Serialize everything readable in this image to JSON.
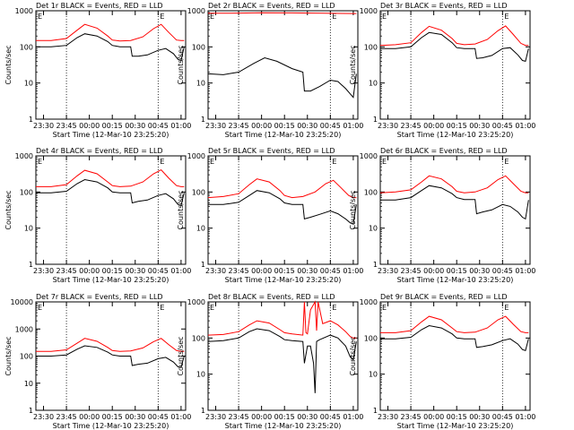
{
  "chart_data": [
    {
      "type": "line",
      "title": "Det 1r BLACK = Events, RED = LLD",
      "marker": "E",
      "ylabel": "Counts/sec",
      "xlabel": "Start Time (12-Mar-10 23:25:20)",
      "yscale": "log",
      "ylim": [
        1,
        1000
      ],
      "yticks": [
        "1",
        "10",
        "100",
        "1000"
      ],
      "xticks": [
        "23:30",
        "23:45",
        "00:00",
        "00:15",
        "00:30",
        "00:45",
        "01:00"
      ],
      "vlines": [
        "23:45",
        "00:45"
      ],
      "series": [
        {
          "color": "#ff0000",
          "x": [
            "23:25",
            "23:35",
            "23:45",
            "23:52",
            "23:57",
            "00:05",
            "00:12",
            "00:15",
            "00:20",
            "00:27",
            "00:35",
            "00:42",
            "00:47",
            "00:52",
            "00:57",
            "01:00",
            "01:02"
          ],
          "values": [
            150,
            150,
            170,
            290,
            420,
            330,
            200,
            155,
            145,
            150,
            190,
            320,
            420,
            250,
            155,
            150,
            150
          ]
        },
        {
          "color": "#000000",
          "x": [
            "23:25",
            "23:35",
            "23:45",
            "23:52",
            "23:57",
            "00:05",
            "00:12",
            "00:15",
            "00:20",
            "00:27",
            "00:28",
            "00:32",
            "00:38",
            "00:45",
            "00:50",
            "00:55",
            "00:58",
            "01:00",
            "01:02"
          ],
          "values": [
            100,
            100,
            110,
            180,
            230,
            200,
            140,
            110,
            100,
            100,
            55,
            55,
            60,
            80,
            90,
            65,
            45,
            42,
            100
          ]
        }
      ]
    },
    {
      "type": "line",
      "title": "Det 2r BLACK = Events, RED = LLD",
      "marker": "E",
      "ylabel": "Counts/sec",
      "xlabel": "Start Time (12-Mar-10 23:25:20)",
      "yscale": "log",
      "ylim": [
        1,
        1000
      ],
      "yticks": [
        "1",
        "10",
        "100",
        "1000"
      ],
      "xticks": [
        "23:30",
        "23:45",
        "00:00",
        "00:15",
        "00:30",
        "00:45",
        "01:00"
      ],
      "vlines": [
        "23:45",
        "00:45"
      ],
      "series": [
        {
          "color": "#ff0000",
          "x": [
            "23:25",
            "23:40",
            "00:00",
            "00:20",
            "00:40",
            "01:02"
          ],
          "values": [
            850,
            850,
            880,
            870,
            850,
            840
          ]
        },
        {
          "color": "#000000",
          "x": [
            "23:25",
            "23:35",
            "23:45",
            "23:55",
            "00:02",
            "00:10",
            "00:20",
            "00:27",
            "00:28",
            "00:32",
            "00:38",
            "00:45",
            "00:50",
            "00:55",
            "00:58",
            "01:00",
            "01:02"
          ],
          "values": [
            18,
            17,
            20,
            35,
            50,
            40,
            25,
            20,
            6,
            6,
            8,
            12,
            11,
            7,
            5,
            4,
            18
          ]
        }
      ]
    },
    {
      "type": "line",
      "title": "Det 3r BLACK = Events, RED = LLD",
      "marker": "E",
      "ylabel": "Counts/sec",
      "xlabel": "Start Time (12-Mar-10 23:25:20)",
      "yscale": "log",
      "ylim": [
        1,
        1000
      ],
      "yticks": [
        "1",
        "10",
        "100",
        "1000"
      ],
      "xticks": [
        "23:30",
        "23:45",
        "00:00",
        "00:15",
        "00:30",
        "00:45",
        "01:00"
      ],
      "vlines": [
        "23:45",
        "00:45"
      ],
      "series": [
        {
          "color": "#ff0000",
          "x": [
            "23:25",
            "23:35",
            "23:45",
            "23:52",
            "23:57",
            "00:05",
            "00:12",
            "00:15",
            "00:20",
            "00:27",
            "00:35",
            "00:42",
            "00:47",
            "00:52",
            "00:57",
            "01:00",
            "01:02"
          ],
          "values": [
            110,
            115,
            130,
            250,
            370,
            290,
            170,
            125,
            115,
            120,
            160,
            280,
            380,
            220,
            125,
            110,
            110
          ]
        },
        {
          "color": "#000000",
          "x": [
            "23:25",
            "23:35",
            "23:45",
            "23:52",
            "23:57",
            "00:05",
            "00:12",
            "00:15",
            "00:20",
            "00:27",
            "00:28",
            "00:32",
            "00:38",
            "00:45",
            "00:50",
            "00:55",
            "00:58",
            "01:00",
            "01:02"
          ],
          "values": [
            90,
            90,
            100,
            180,
            250,
            220,
            130,
            95,
            90,
            90,
            48,
            50,
            58,
            90,
            95,
            60,
            42,
            40,
            90
          ]
        }
      ]
    },
    {
      "type": "line",
      "title": "Det 4r BLACK = Events, RED = LLD",
      "marker": "E",
      "ylabel": "Counts/sec",
      "xlabel": "Start Time (12-Mar-10 23:25:20)",
      "yscale": "log",
      "ylim": [
        1,
        1000
      ],
      "yticks": [
        "1",
        "10",
        "100",
        "1000"
      ],
      "xticks": [
        "23:30",
        "23:45",
        "00:00",
        "00:15",
        "00:30",
        "00:45",
        "01:00"
      ],
      "vlines": [
        "23:45",
        "00:45"
      ],
      "series": [
        {
          "color": "#ff0000",
          "x": [
            "23:25",
            "23:35",
            "23:45",
            "23:52",
            "23:57",
            "00:05",
            "00:12",
            "00:15",
            "00:20",
            "00:27",
            "00:35",
            "00:42",
            "00:47",
            "00:52",
            "00:57",
            "01:00",
            "01:02"
          ],
          "values": [
            140,
            140,
            160,
            280,
            400,
            320,
            190,
            150,
            140,
            145,
            190,
            320,
            410,
            240,
            150,
            140,
            140
          ]
        },
        {
          "color": "#000000",
          "x": [
            "23:25",
            "23:35",
            "23:45",
            "23:52",
            "23:57",
            "00:05",
            "00:12",
            "00:15",
            "00:20",
            "00:27",
            "00:28",
            "00:32",
            "00:38",
            "00:45",
            "00:50",
            "00:55",
            "00:58",
            "01:00",
            "01:02"
          ],
          "values": [
            95,
            95,
            105,
            170,
            220,
            190,
            130,
            100,
            95,
            95,
            50,
            55,
            60,
            80,
            90,
            65,
            45,
            42,
            95
          ]
        }
      ]
    },
    {
      "type": "line",
      "title": "Det 5r BLACK = Events, RED = LLD",
      "marker": "E",
      "ylabel": "Counts/sec",
      "xlabel": "Start Time (12-Mar-10 23:25:20)",
      "yscale": "log",
      "ylim": [
        1,
        1000
      ],
      "yticks": [
        "1",
        "10",
        "100",
        "1000"
      ],
      "xticks": [
        "23:30",
        "23:45",
        "00:00",
        "00:15",
        "00:30",
        "00:45",
        "01:00"
      ],
      "vlines": [
        "23:45",
        "00:45"
      ],
      "series": [
        {
          "color": "#ff0000",
          "x": [
            "23:25",
            "23:35",
            "23:45",
            "23:52",
            "23:57",
            "00:05",
            "00:12",
            "00:15",
            "00:20",
            "00:27",
            "00:35",
            "00:42",
            "00:47",
            "00:52",
            "00:57",
            "01:00",
            "01:02"
          ],
          "values": [
            70,
            75,
            90,
            160,
            230,
            190,
            110,
            80,
            70,
            75,
            100,
            170,
            210,
            130,
            80,
            70,
            70
          ]
        },
        {
          "color": "#000000",
          "x": [
            "23:25",
            "23:35",
            "23:45",
            "23:52",
            "23:57",
            "00:05",
            "00:12",
            "00:15",
            "00:20",
            "00:27",
            "00:28",
            "00:32",
            "00:38",
            "00:45",
            "00:50",
            "00:55",
            "00:58",
            "01:00",
            "01:02"
          ],
          "values": [
            45,
            45,
            52,
            80,
            110,
            95,
            65,
            50,
            45,
            45,
            18,
            20,
            24,
            30,
            25,
            18,
            14,
            13,
            45
          ]
        }
      ]
    },
    {
      "type": "line",
      "title": "Det 6r BLACK = Events, RED = LLD",
      "marker": "E",
      "ylabel": "Counts/sec",
      "xlabel": "Start Time (12-Mar-10 23:25:20)",
      "yscale": "log",
      "ylim": [
        1,
        1000
      ],
      "yticks": [
        "1",
        "10",
        "100",
        "1000"
      ],
      "xticks": [
        "23:30",
        "23:45",
        "00:00",
        "00:15",
        "00:30",
        "00:45",
        "01:00"
      ],
      "vlines": [
        "23:45",
        "00:45"
      ],
      "series": [
        {
          "color": "#ff0000",
          "x": [
            "23:25",
            "23:35",
            "23:45",
            "23:52",
            "23:57",
            "00:05",
            "00:12",
            "00:15",
            "00:20",
            "00:27",
            "00:35",
            "00:42",
            "00:47",
            "00:52",
            "00:57",
            "01:00",
            "01:02"
          ],
          "values": [
            95,
            100,
            115,
            190,
            280,
            230,
            140,
            105,
            95,
            100,
            130,
            220,
            280,
            170,
            105,
            95,
            95
          ]
        },
        {
          "color": "#000000",
          "x": [
            "23:25",
            "23:35",
            "23:45",
            "23:52",
            "23:57",
            "00:05",
            "00:12",
            "00:15",
            "00:20",
            "00:27",
            "00:28",
            "00:32",
            "00:38",
            "00:45",
            "00:50",
            "00:55",
            "00:58",
            "01:00",
            "01:02"
          ],
          "values": [
            60,
            60,
            70,
            110,
            150,
            130,
            90,
            70,
            62,
            62,
            25,
            28,
            32,
            45,
            40,
            28,
            20,
            18,
            60
          ]
        }
      ]
    },
    {
      "type": "line",
      "title": "Det 7r BLACK = Events, RED = LLD",
      "marker": "E",
      "ylabel": "Counts/sec",
      "xlabel": "Start Time (12-Mar-10 23:25:20)",
      "yscale": "log",
      "ylim": [
        1,
        10000
      ],
      "yticks": [
        "1",
        "10",
        "100",
        "1000",
        "10000"
      ],
      "xticks": [
        "23:30",
        "23:45",
        "00:00",
        "00:15",
        "00:30",
        "00:45",
        "01:00"
      ],
      "vlines": [
        "23:45",
        "00:45"
      ],
      "series": [
        {
          "color": "#ff0000",
          "x": [
            "23:25",
            "23:35",
            "23:45",
            "23:52",
            "23:57",
            "00:05",
            "00:12",
            "00:15",
            "00:20",
            "00:27",
            "00:35",
            "00:42",
            "00:47",
            "00:52",
            "00:57",
            "01:00",
            "01:02"
          ],
          "values": [
            150,
            150,
            170,
            300,
            450,
            350,
            210,
            160,
            150,
            155,
            200,
            340,
            450,
            260,
            160,
            150,
            150
          ]
        },
        {
          "color": "#000000",
          "x": [
            "23:25",
            "23:35",
            "23:45",
            "23:52",
            "23:57",
            "00:05",
            "00:12",
            "00:15",
            "00:20",
            "00:27",
            "00:28",
            "00:32",
            "00:38",
            "00:45",
            "00:50",
            "00:55",
            "00:58",
            "01:00",
            "01:02"
          ],
          "values": [
            100,
            100,
            110,
            180,
            240,
            210,
            140,
            110,
            100,
            100,
            45,
            50,
            55,
            80,
            90,
            60,
            40,
            38,
            100
          ]
        }
      ]
    },
    {
      "type": "line",
      "title": "Det 8r BLACK = Events, RED = LLD",
      "marker": "E",
      "ylabel": "Counts/sec",
      "xlabel": "Start Time (12-Mar-10 23:25:20)",
      "yscale": "log",
      "ylim": [
        1,
        1000
      ],
      "yticks": [
        "1",
        "10",
        "100",
        "1000"
      ],
      "xticks": [
        "23:30",
        "23:45",
        "00:00",
        "00:15",
        "00:30",
        "00:45",
        "01:00"
      ],
      "vlines": [
        "23:45",
        "00:45"
      ],
      "series": [
        {
          "color": "#ff0000",
          "x": [
            "23:25",
            "23:35",
            "23:45",
            "23:52",
            "23:57",
            "00:05",
            "00:12",
            "00:15",
            "00:20",
            "00:27",
            "00:28",
            "00:29",
            "00:30",
            "00:32",
            "00:35",
            "00:36",
            "00:37",
            "00:40",
            "00:45",
            "00:50",
            "00:55",
            "00:58",
            "01:00",
            "01:02"
          ],
          "values": [
            120,
            125,
            150,
            230,
            300,
            260,
            170,
            140,
            130,
            120,
            1000,
            140,
            130,
            600,
            1000,
            160,
            1000,
            250,
            300,
            230,
            150,
            110,
            100,
            100
          ]
        },
        {
          "color": "#000000",
          "x": [
            "23:25",
            "23:35",
            "23:45",
            "23:52",
            "23:57",
            "00:05",
            "00:12",
            "00:15",
            "00:20",
            "00:27",
            "00:28",
            "00:30",
            "00:32",
            "00:34",
            "00:35",
            "00:36",
            "00:38",
            "00:45",
            "00:50",
            "00:55",
            "00:58",
            "01:00",
            "01:02"
          ],
          "values": [
            80,
            85,
            100,
            150,
            180,
            160,
            110,
            90,
            85,
            80,
            20,
            60,
            60,
            20,
            3,
            80,
            90,
            120,
            100,
            60,
            30,
            25,
            80
          ]
        }
      ]
    },
    {
      "type": "line",
      "title": "Det 9r BLACK = Events, RED = LLD",
      "marker": "E",
      "ylabel": "Counts/sec",
      "xlabel": "Start Time (12-Mar-10 23:25:20)",
      "yscale": "log",
      "ylim": [
        1,
        1000
      ],
      "yticks": [
        "1",
        "10",
        "100",
        "1000"
      ],
      "xticks": [
        "23:30",
        "23:45",
        "00:00",
        "00:15",
        "00:30",
        "00:45",
        "01:00"
      ],
      "vlines": [
        "23:45",
        "00:45"
      ],
      "series": [
        {
          "color": "#ff0000",
          "x": [
            "23:25",
            "23:35",
            "23:45",
            "23:52",
            "23:57",
            "00:05",
            "00:12",
            "00:15",
            "00:20",
            "00:27",
            "00:35",
            "00:42",
            "00:47",
            "00:52",
            "00:57",
            "01:00",
            "01:02"
          ],
          "values": [
            140,
            140,
            160,
            280,
            400,
            320,
            190,
            150,
            140,
            145,
            190,
            320,
            400,
            240,
            150,
            140,
            140
          ]
        },
        {
          "color": "#000000",
          "x": [
            "23:25",
            "23:35",
            "23:45",
            "23:52",
            "23:57",
            "00:05",
            "00:12",
            "00:15",
            "00:20",
            "00:27",
            "00:28",
            "00:32",
            "00:38",
            "00:45",
            "00:50",
            "00:55",
            "00:58",
            "01:00",
            "01:02"
          ],
          "values": [
            95,
            95,
            105,
            170,
            220,
            190,
            130,
            100,
            95,
            95,
            55,
            58,
            65,
            85,
            95,
            68,
            48,
            45,
            95
          ]
        }
      ]
    }
  ]
}
